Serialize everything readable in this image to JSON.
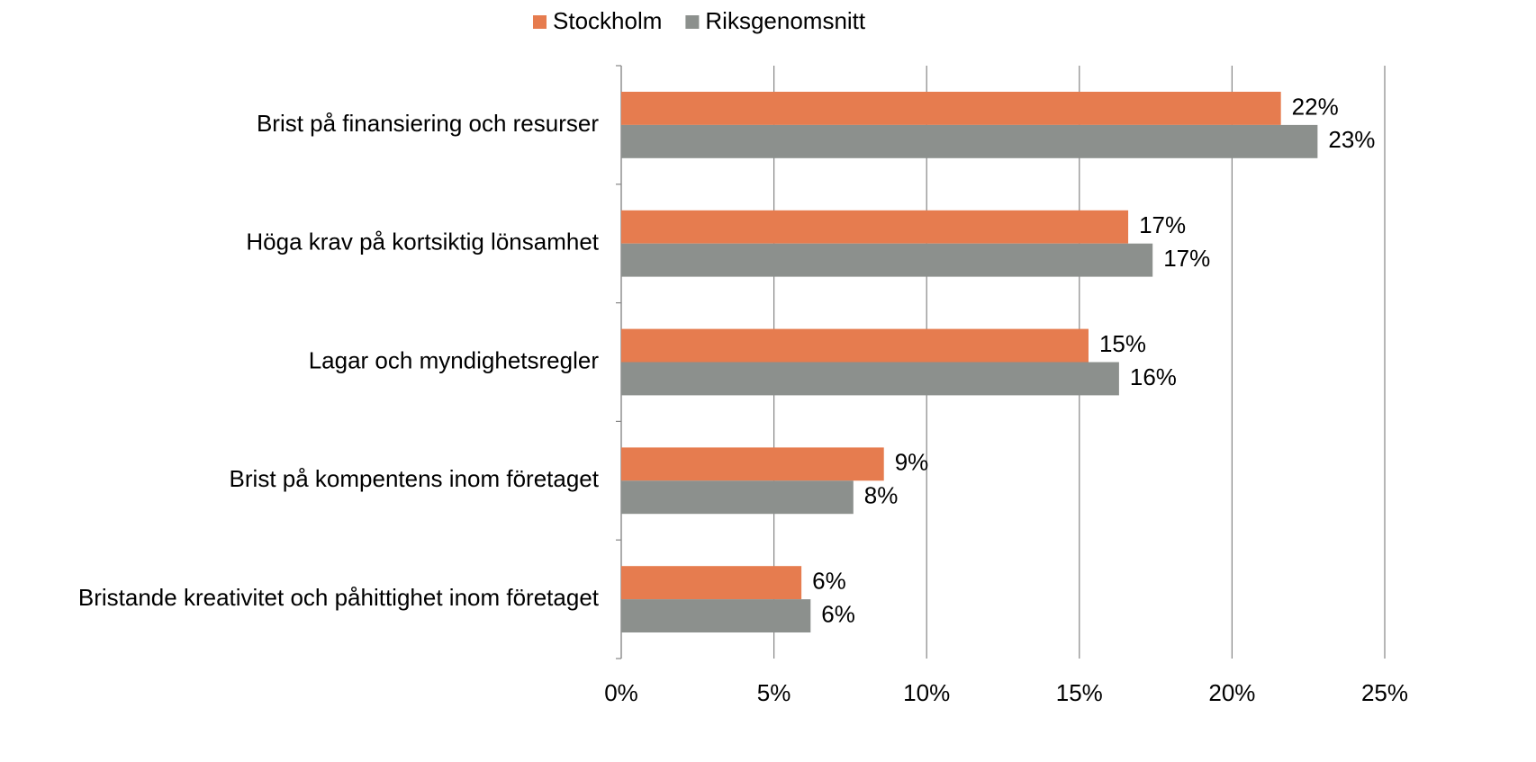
{
  "chart_data": {
    "type": "hbar",
    "categories": [
      "Brist på finansiering och resurser",
      "Höga krav på kortsiktig lönsamhet",
      "Lagar och myndighetsregler",
      "Brist på kompentens inom företaget",
      "Bristande kreativitet och påhittighet inom företaget"
    ],
    "series": [
      {
        "name": "Stockholm",
        "color": "#e67c4f",
        "values": [
          21.6,
          16.6,
          15.3,
          8.6,
          5.9
        ],
        "value_labels": [
          "22%",
          "17%",
          "15%",
          "9%",
          "6%"
        ]
      },
      {
        "name": "Riksgenomsnitt",
        "color": "#8c908d",
        "values": [
          22.8,
          17.4,
          16.3,
          7.6,
          6.2
        ],
        "value_labels": [
          "23%",
          "17%",
          "16%",
          "8%",
          "6%"
        ]
      }
    ],
    "xlim": [
      0,
      25
    ],
    "xticks": [
      {
        "value": 0,
        "label": "0%"
      },
      {
        "value": 5,
        "label": "5%"
      },
      {
        "value": 10,
        "label": "10%"
      },
      {
        "value": 15,
        "label": "15%"
      },
      {
        "value": 20,
        "label": "20%"
      },
      {
        "value": 25,
        "label": "25%"
      }
    ],
    "grid": true,
    "legend": "top"
  }
}
